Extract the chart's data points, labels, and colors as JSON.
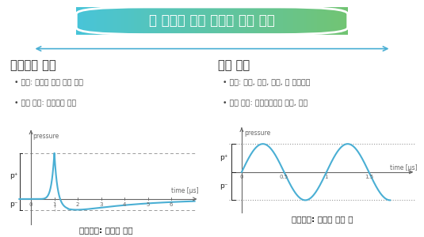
{
  "title": "뇌 부위별 최적 형태의 자극 제공",
  "left_title": "전전두엽 이상",
  "left_bullets": [
    "역할: 판단과 계획 기능 담당",
    "관련 장애: 충동조절 장애"
  ],
  "right_title": "해마 이상",
  "right_bullets": [
    "역할: 학습, 기억, 감정, 및 운동기등",
    "관련 장애: 알츠하이머성 치매, 간질"
  ],
  "left_caption": "제어인자: 충격파 강도",
  "right_caption": "제어인자: 충격파 펄스 폭",
  "wave_color": "#4AAFD4",
  "axis_color": "#666666",
  "title_bg_start": "#48C4D8",
  "title_bg_end": "#72C472",
  "arrow_color": "#4AAFD4",
  "text_dark": "#222222",
  "dashed_color": "#999999",
  "bullet_color": "#444444",
  "bg_color": "#ffffff"
}
